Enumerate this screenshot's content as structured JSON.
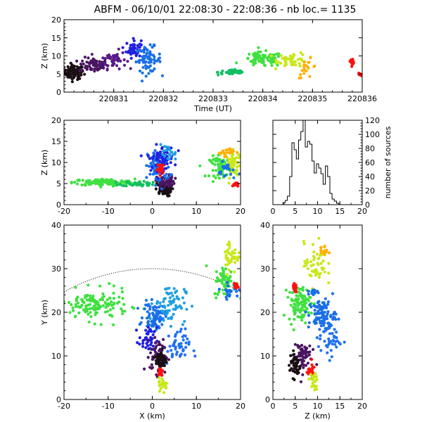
{
  "chart_data": [
    {
      "panel": "time-height",
      "type": "scatter",
      "title": "ABFM - 06/10/01 22:08:30 - 22:08:36 - nb loc.=    1135",
      "xlabel": "Time (UT)",
      "ylabel": "Z (km)",
      "xlim": [
        220830,
        220836
      ],
      "ylim": [
        0,
        20
      ],
      "xticks": [
        "220831",
        "220832",
        "220833",
        "220834",
        "220835",
        "220836"
      ],
      "yticks": [
        "0",
        "5",
        "10",
        "15",
        "20"
      ],
      "clusters": [
        {
          "x": 220830.2,
          "y": 5.5,
          "dx": 0.2,
          "dy": 2.0,
          "n": 80,
          "color": "#1a0f14"
        },
        {
          "x": 220830.6,
          "y": 7.5,
          "dx": 0.3,
          "dy": 2.0,
          "n": 70,
          "color": "#4a1560"
        },
        {
          "x": 220831.0,
          "y": 9.0,
          "dx": 0.25,
          "dy": 2.5,
          "n": 50,
          "color": "#5a1a8a"
        },
        {
          "x": 220831.4,
          "y": 12.0,
          "dx": 0.15,
          "dy": 2.5,
          "n": 50,
          "color": "#2020e0"
        },
        {
          "x": 220831.7,
          "y": 9.0,
          "dx": 0.25,
          "dy": 3.5,
          "n": 70,
          "color": "#1a6fe8"
        },
        {
          "x": 220833.4,
          "y": 5.5,
          "dx": 0.3,
          "dy": 0.8,
          "n": 40,
          "color": "#10c060"
        },
        {
          "x": 220834.0,
          "y": 9.0,
          "dx": 0.4,
          "dy": 2.0,
          "n": 80,
          "color": "#40e040"
        },
        {
          "x": 220834.6,
          "y": 9.0,
          "dx": 0.3,
          "dy": 2.0,
          "n": 50,
          "color": "#c8e818"
        },
        {
          "x": 220834.9,
          "y": 6.5,
          "dx": 0.2,
          "dy": 2.5,
          "n": 20,
          "color": "#ffb000"
        },
        {
          "x": 220835.8,
          "y": 8.5,
          "dx": 0.04,
          "dy": 0.7,
          "n": 20,
          "color": "#ff1010"
        },
        {
          "x": 220835.95,
          "y": 4.8,
          "dx": 0.04,
          "dy": 0.4,
          "n": 15,
          "color": "#ff1010"
        }
      ]
    },
    {
      "panel": "x-height",
      "type": "scatter",
      "xlabel": "",
      "ylabel": "Z (km)",
      "xlim": [
        -20,
        20
      ],
      "ylim": [
        0,
        20
      ],
      "xticks": [
        "-20",
        "-10",
        "0",
        "10",
        "20"
      ],
      "yticks": [
        "0",
        "5",
        "10",
        "15",
        "20"
      ],
      "clusters": [
        {
          "x": -11,
          "y": 5.3,
          "dx": 7,
          "dy": 0.8,
          "n": 140,
          "color": "#40e040"
        },
        {
          "x": -3,
          "y": 5.0,
          "dx": 4,
          "dy": 0.6,
          "n": 40,
          "color": "#10c060"
        },
        {
          "x": 2.5,
          "y": 3.5,
          "dx": 1.8,
          "dy": 1.5,
          "n": 70,
          "color": "#1a0f14"
        },
        {
          "x": 3.0,
          "y": 5.5,
          "dx": 2,
          "dy": 1.5,
          "n": 60,
          "color": "#4a1560"
        },
        {
          "x": 1.5,
          "y": 9.0,
          "dx": 2.5,
          "dy": 4.0,
          "n": 90,
          "color": "#1a6fe8"
        },
        {
          "x": 2.0,
          "y": 11.0,
          "dx": 3.0,
          "dy": 3.0,
          "n": 60,
          "color": "#2020e0"
        },
        {
          "x": 3.5,
          "y": 12.0,
          "dx": 2.0,
          "dy": 2.0,
          "n": 20,
          "color": "#20a0e0"
        },
        {
          "x": 2.0,
          "y": 8.5,
          "dx": 0.8,
          "dy": 1.2,
          "n": 25,
          "color": "#ff1010"
        },
        {
          "x": 15.5,
          "y": 9.0,
          "dx": 2.5,
          "dy": 2.5,
          "n": 60,
          "color": "#40e040"
        },
        {
          "x": 18.5,
          "y": 9.5,
          "dx": 1.8,
          "dy": 3.0,
          "n": 50,
          "color": "#c8e818"
        },
        {
          "x": 16.5,
          "y": 12.5,
          "dx": 2.0,
          "dy": 1.0,
          "n": 20,
          "color": "#ffb000"
        },
        {
          "x": 18.8,
          "y": 4.8,
          "dx": 0.6,
          "dy": 0.6,
          "n": 15,
          "color": "#ff1010"
        },
        {
          "x": 17.0,
          "y": 8.0,
          "dx": 2.0,
          "dy": 2.0,
          "n": 20,
          "color": "#1a6fe8"
        }
      ]
    },
    {
      "panel": "height-histogram",
      "type": "line",
      "xlabel": "",
      "ylabel": "number of sources",
      "xlim": [
        0,
        20
      ],
      "ylim": [
        0,
        120
      ],
      "xticks": [
        "0",
        "5",
        "10",
        "15",
        "20"
      ],
      "yticks": [
        "0",
        "20",
        "40",
        "60",
        "80",
        "100",
        "120"
      ],
      "x": [
        2.5,
        3.0,
        3.5,
        4.0,
        4.5,
        5.0,
        5.5,
        6.0,
        6.5,
        7.0,
        7.5,
        8.0,
        8.5,
        9.0,
        9.5,
        10.0,
        10.5,
        11.0,
        11.5,
        12.0,
        12.5,
        13.0,
        13.5,
        14.0,
        14.5,
        15.0
      ],
      "y": [
        3,
        6,
        12,
        40,
        88,
        78,
        65,
        92,
        104,
        121,
        82,
        90,
        86,
        62,
        45,
        58,
        52,
        44,
        29,
        55,
        40,
        16,
        8,
        5,
        2,
        0
      ]
    },
    {
      "panel": "plan-view",
      "type": "scatter",
      "xlabel": "X (km)",
      "ylabel": "Y (km)",
      "xlim": [
        -20,
        20
      ],
      "ylim": [
        0,
        40
      ],
      "xticks": [
        "-20",
        "-10",
        "0",
        "10",
        "20"
      ],
      "yticks": [
        "0",
        "10",
        "20",
        "30",
        "40"
      ],
      "arc": {
        "cx": 0,
        "cy": -10,
        "r": 40
      },
      "clusters": [
        {
          "x": -13,
          "y": 21.5,
          "dx": 7.5,
          "dy": 3.5,
          "n": 140,
          "color": "#40e040"
        },
        {
          "x": 0.5,
          "y": 19.0,
          "dx": 2.5,
          "dy": 3.0,
          "n": 80,
          "color": "#1a6fe8"
        },
        {
          "x": 4.0,
          "y": 22.0,
          "dx": 3.5,
          "dy": 4.5,
          "n": 70,
          "color": "#20a0e0"
        },
        {
          "x": 5.5,
          "y": 12.0,
          "dx": 3.0,
          "dy": 4.0,
          "n": 50,
          "color": "#2070f0"
        },
        {
          "x": -1.0,
          "y": 13.5,
          "dx": 2.0,
          "dy": 3.0,
          "n": 40,
          "color": "#2020e0"
        },
        {
          "x": 1.5,
          "y": 10.0,
          "dx": 2.0,
          "dy": 4.0,
          "n": 70,
          "color": "#4a1560"
        },
        {
          "x": 2.0,
          "y": 9.0,
          "dx": 1.2,
          "dy": 2.5,
          "n": 50,
          "color": "#1a0f14"
        },
        {
          "x": 1.8,
          "y": 6.5,
          "dx": 0.6,
          "dy": 1.0,
          "n": 25,
          "color": "#ff1010"
        },
        {
          "x": 2.5,
          "y": 3.5,
          "dx": 1.0,
          "dy": 1.5,
          "n": 25,
          "color": "#c8e818"
        },
        {
          "x": 16.5,
          "y": 27.0,
          "dx": 2.5,
          "dy": 3.5,
          "n": 60,
          "color": "#40e040"
        },
        {
          "x": 18.0,
          "y": 33.0,
          "dx": 2.0,
          "dy": 4.0,
          "n": 45,
          "color": "#c8e818"
        },
        {
          "x": 17.5,
          "y": 25.0,
          "dx": 2.0,
          "dy": 1.5,
          "n": 25,
          "color": "#1a6fe8"
        },
        {
          "x": 19.0,
          "y": 26.0,
          "dx": 0.6,
          "dy": 0.6,
          "n": 15,
          "color": "#ff1010"
        }
      ]
    },
    {
      "panel": "height-y",
      "type": "scatter",
      "xlabel": "Z (km)",
      "ylabel": "",
      "xlim": [
        0,
        20
      ],
      "ylim": [
        0,
        40
      ],
      "xticks": [
        "0",
        "5",
        "10",
        "15",
        "20"
      ],
      "yticks": [
        "0",
        "10",
        "20",
        "30",
        "40"
      ],
      "clusters": [
        {
          "x": 6.0,
          "y": 22.0,
          "dx": 2.5,
          "dy": 4.0,
          "n": 100,
          "color": "#40e040"
        },
        {
          "x": 11.0,
          "y": 19.5,
          "dx": 3.0,
          "dy": 3.5,
          "n": 90,
          "color": "#1a6fe8"
        },
        {
          "x": 12.5,
          "y": 14.0,
          "dx": 2.5,
          "dy": 4.0,
          "n": 50,
          "color": "#2070f0"
        },
        {
          "x": 6.5,
          "y": 10.0,
          "dx": 2.0,
          "dy": 4.0,
          "n": 60,
          "color": "#4a1560"
        },
        {
          "x": 5.0,
          "y": 8.0,
          "dx": 1.2,
          "dy": 3.0,
          "n": 50,
          "color": "#1a0f14"
        },
        {
          "x": 8.5,
          "y": 6.5,
          "dx": 1.0,
          "dy": 1.5,
          "n": 25,
          "color": "#ff1010"
        },
        {
          "x": 9.0,
          "y": 4.0,
          "dx": 1.0,
          "dy": 2.0,
          "n": 25,
          "color": "#c8e818"
        },
        {
          "x": 9.5,
          "y": 31.0,
          "dx": 2.5,
          "dy": 5.0,
          "n": 50,
          "color": "#c8e818"
        },
        {
          "x": 11.5,
          "y": 34.0,
          "dx": 1.0,
          "dy": 1.5,
          "n": 15,
          "color": "#ffb000"
        },
        {
          "x": 9.0,
          "y": 25.0,
          "dx": 1.5,
          "dy": 1.5,
          "n": 15,
          "color": "#1a6fe8"
        },
        {
          "x": 4.8,
          "y": 25.5,
          "dx": 0.5,
          "dy": 1.0,
          "n": 15,
          "color": "#ff1010"
        }
      ]
    }
  ]
}
